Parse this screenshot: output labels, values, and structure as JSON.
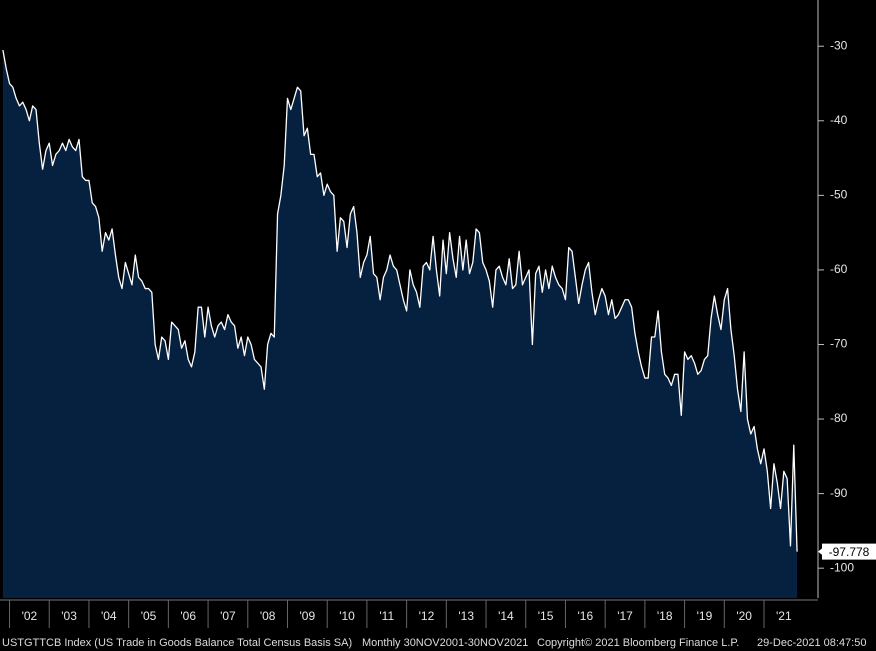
{
  "chart_data": {
    "type": "area",
    "series": [
      {
        "name": "USTGTTCB Index",
        "color": "#ffffff",
        "fill": "#06203f",
        "values": [
          -30.5,
          -33,
          -35,
          -35.5,
          -37,
          -38,
          -37.5,
          -38.5,
          -40,
          -38,
          -38.5,
          -43,
          -46.5,
          -44,
          -43,
          -46,
          -44.5,
          -44,
          -43,
          -44,
          -42.5,
          -43.5,
          -44,
          -42.5,
          -47.5,
          -48,
          -48,
          -51,
          -51.5,
          -53,
          -57.5,
          -55,
          -56,
          -54.5,
          -58,
          -61,
          -62.5,
          -59,
          -60.5,
          -62,
          -58,
          -61,
          -61.5,
          -62.5,
          -62.5,
          -63,
          -70,
          -72,
          -69,
          -69.5,
          -72,
          -67,
          -67.5,
          -68,
          -70.5,
          -69.5,
          -72,
          -73,
          -71,
          -65,
          -65,
          -69,
          -65,
          -67.5,
          -69,
          -67.5,
          -67,
          -68,
          -66,
          -67,
          -67.5,
          -70.5,
          -69,
          -71.5,
          -69,
          -70,
          -72,
          -72.5,
          -73,
          -76,
          -70,
          -68.5,
          -69,
          -52.5,
          -50,
          -46,
          -37,
          -38.5,
          -37,
          -35.5,
          -36,
          -42,
          -41,
          -44.5,
          -44.5,
          -47.5,
          -47,
          -50,
          -48.5,
          -49.5,
          -50,
          -57.5,
          -53,
          -53.5,
          -57,
          -52.5,
          -51.5,
          -55,
          -61,
          -59,
          -58,
          -55.5,
          -60.5,
          -61,
          -64,
          -61,
          -60,
          -58,
          -59.5,
          -60,
          -62,
          -64,
          -65.5,
          -60,
          -62,
          -63,
          -65,
          -59.5,
          -59,
          -60,
          -55.5,
          -60,
          -63.5,
          -56,
          -60.5,
          -55,
          -58.5,
          -61,
          -55.5,
          -60,
          -56,
          -60.5,
          -59,
          -54.5,
          -55,
          -59,
          -60,
          -61.5,
          -65,
          -60,
          -59.5,
          -61,
          -62,
          -58.5,
          -62.5,
          -62,
          -57.5,
          -62,
          -61,
          -60,
          -70,
          -60.5,
          -59.5,
          -63,
          -60,
          -62.5,
          -59.5,
          -61,
          -62,
          -62.5,
          -64,
          -57,
          -57.5,
          -61,
          -64.5,
          -62,
          -60,
          -59,
          -63,
          -66,
          -64,
          -62.5,
          -63.5,
          -66,
          -64,
          -66.5,
          -66,
          -65,
          -64,
          -64,
          -65,
          -68.5,
          -71,
          -73,
          -74.5,
          -74.5,
          -69,
          -69,
          -65.5,
          -71,
          -74,
          -74.5,
          -75.5,
          -74,
          -74,
          -79.5,
          -71,
          -72,
          -71.5,
          -72.5,
          -74,
          -73.5,
          -72,
          -71.5,
          -66.5,
          -63.5,
          -66,
          -68,
          -64,
          -62.5,
          -68,
          -71.5,
          -76,
          -79,
          -71,
          -80,
          -82,
          -81,
          -84,
          -86,
          -84,
          -87,
          -92,
          -86,
          -88.5,
          -92,
          -87,
          -88,
          -97,
          -83.5,
          -97.778
        ]
      }
    ],
    "x": [
      2001.833,
      2001.917,
      2002,
      2002.083,
      2002.167,
      2002.25,
      2002.333,
      2002.417,
      2002.5,
      2002.583,
      2002.667,
      2002.75,
      2002.833,
      2002.917,
      2003,
      2003.083,
      2003.167,
      2003.25,
      2003.333,
      2003.417,
      2003.5,
      2003.583,
      2003.667,
      2003.75,
      2003.833,
      2003.917,
      2004,
      2004.083,
      2004.167,
      2004.25,
      2004.333,
      2004.417,
      2004.5,
      2004.583,
      2004.667,
      2004.75,
      2004.833,
      2004.917,
      2005,
      2005.083,
      2005.167,
      2005.25,
      2005.333,
      2005.417,
      2005.5,
      2005.583,
      2005.667,
      2005.75,
      2005.833,
      2005.917,
      2006,
      2006.083,
      2006.167,
      2006.25,
      2006.333,
      2006.417,
      2006.5,
      2006.583,
      2006.667,
      2006.75,
      2006.833,
      2006.917,
      2007,
      2007.083,
      2007.167,
      2007.25,
      2007.333,
      2007.417,
      2007.5,
      2007.583,
      2007.667,
      2007.75,
      2007.833,
      2007.917,
      2008,
      2008.083,
      2008.167,
      2008.25,
      2008.333,
      2008.417,
      2008.5,
      2008.583,
      2008.667,
      2008.75,
      2008.833,
      2008.917,
      2009,
      2009.083,
      2009.167,
      2009.25,
      2009.333,
      2009.417,
      2009.5,
      2009.583,
      2009.667,
      2009.75,
      2009.833,
      2009.917,
      2010,
      2010.083,
      2010.167,
      2010.25,
      2010.333,
      2010.417,
      2010.5,
      2010.583,
      2010.667,
      2010.75,
      2010.833,
      2010.917,
      2011,
      2011.083,
      2011.167,
      2011.25,
      2011.333,
      2011.417,
      2011.5,
      2011.583,
      2011.667,
      2011.75,
      2011.833,
      2011.917,
      2012,
      2012.083,
      2012.167,
      2012.25,
      2012.333,
      2012.417,
      2012.5,
      2012.583,
      2012.667,
      2012.75,
      2012.833,
      2012.917,
      2013,
      2013.083,
      2013.167,
      2013.25,
      2013.333,
      2013.417,
      2013.5,
      2013.583,
      2013.667,
      2013.75,
      2013.833,
      2013.917,
      2014,
      2014.083,
      2014.167,
      2014.25,
      2014.333,
      2014.417,
      2014.5,
      2014.583,
      2014.667,
      2014.75,
      2014.833,
      2014.917,
      2015,
      2015.083,
      2015.167,
      2015.25,
      2015.333,
      2015.417,
      2015.5,
      2015.583,
      2015.667,
      2015.75,
      2015.833,
      2015.917,
      2016,
      2016.083,
      2016.167,
      2016.25,
      2016.333,
      2016.417,
      2016.5,
      2016.583,
      2016.667,
      2016.75,
      2016.833,
      2016.917,
      2017,
      2017.083,
      2017.167,
      2017.25,
      2017.333,
      2017.417,
      2017.5,
      2017.583,
      2017.667,
      2017.75,
      2017.833,
      2017.917,
      2018,
      2018.083,
      2018.167,
      2018.25,
      2018.333,
      2018.417,
      2018.5,
      2018.583,
      2018.667,
      2018.75,
      2018.833,
      2018.917,
      2019,
      2019.083,
      2019.167,
      2019.25,
      2019.333,
      2019.417,
      2019.5,
      2019.583,
      2019.667,
      2019.75,
      2019.833,
      2019.917,
      2020,
      2020.083,
      2020.167,
      2020.25,
      2020.333,
      2020.417,
      2020.5,
      2020.583,
      2020.667,
      2020.75,
      2020.833,
      2020.917,
      2021,
      2021.083,
      2021.167,
      2021.25,
      2021.333,
      2021.417,
      2021.5,
      2021.583,
      2021.667,
      2021.75,
      2021.833
    ],
    "xlim": [
      2001.76,
      2022.36
    ],
    "xticks": [
      {
        "value": 2002,
        "label": "'02"
      },
      {
        "value": 2003,
        "label": "'03"
      },
      {
        "value": 2004,
        "label": "'04"
      },
      {
        "value": 2005,
        "label": "'05"
      },
      {
        "value": 2006,
        "label": "'06"
      },
      {
        "value": 2007,
        "label": "'07"
      },
      {
        "value": 2008,
        "label": "'08"
      },
      {
        "value": 2009,
        "label": "'09"
      },
      {
        "value": 2010,
        "label": "'10"
      },
      {
        "value": 2011,
        "label": "'11"
      },
      {
        "value": 2012,
        "label": "'12"
      },
      {
        "value": 2013,
        "label": "'13"
      },
      {
        "value": 2014,
        "label": "'14"
      },
      {
        "value": 2015,
        "label": "'15"
      },
      {
        "value": 2016,
        "label": "'16"
      },
      {
        "value": 2017,
        "label": "'17"
      },
      {
        "value": 2018,
        "label": "'18"
      },
      {
        "value": 2019,
        "label": "'19"
      },
      {
        "value": 2020,
        "label": "'20"
      },
      {
        "value": 2021,
        "label": "'21"
      }
    ],
    "ylim": [
      -104,
      -23.8
    ],
    "yticks": [
      -30,
      -40,
      -50,
      -60,
      -70,
      -80,
      -90,
      -100
    ],
    "grid": false,
    "footer": [
      "USTGTTCB Index (US Trade in Goods Balance Total Census Basis SA)",
      "Monthly 30NOV2001-30NOV2021",
      "Copyright© 2021 Bloomberg Finance L.P.",
      "29-Dec-2021 08:47:50"
    ]
  }
}
